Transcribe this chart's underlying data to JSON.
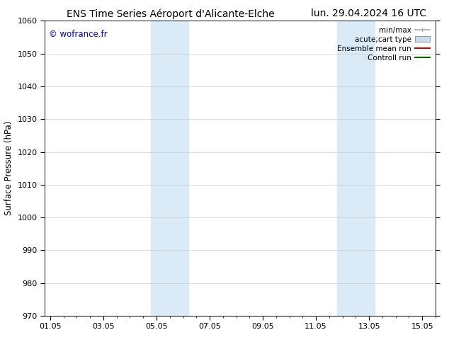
{
  "title_left": "ENS Time Series Aéroport d'Alicante-Elche",
  "title_right": "lun. 29.04.2024 16 UTC",
  "ylabel": "Surface Pressure (hPa)",
  "watermark": "© wofrance.fr",
  "watermark_color": "#0000cc",
  "ylim": [
    970,
    1060
  ],
  "yticks": [
    970,
    980,
    990,
    1000,
    1010,
    1020,
    1030,
    1040,
    1050,
    1060
  ],
  "xtick_labels": [
    "01.05",
    "03.05",
    "05.05",
    "07.05",
    "09.05",
    "11.05",
    "13.05",
    "15.05"
  ],
  "xtick_positions": [
    0,
    2,
    4,
    6,
    8,
    10,
    12,
    14
  ],
  "xlim": [
    -0.2,
    14.5
  ],
  "shaded_bands": [
    {
      "xmin": 3.8,
      "xmax": 5.2,
      "color": "#daeaf7"
    },
    {
      "xmin": 10.8,
      "xmax": 12.2,
      "color": "#daeaf7"
    }
  ],
  "legend_entries": [
    {
      "label": "min/max",
      "color": "#aaaaaa",
      "style": "minmax"
    },
    {
      "label": "acute;cart type",
      "color": "#c8dced",
      "style": "box"
    },
    {
      "label": "Ensemble mean run",
      "color": "#cc0000",
      "style": "line"
    },
    {
      "label": "Controll run",
      "color": "#006600",
      "style": "line"
    }
  ],
  "background_color": "#ffffff",
  "grid_color": "#cccccc",
  "title_fontsize": 10,
  "tick_fontsize": 8,
  "ylabel_fontsize": 8.5,
  "legend_fontsize": 7.5
}
